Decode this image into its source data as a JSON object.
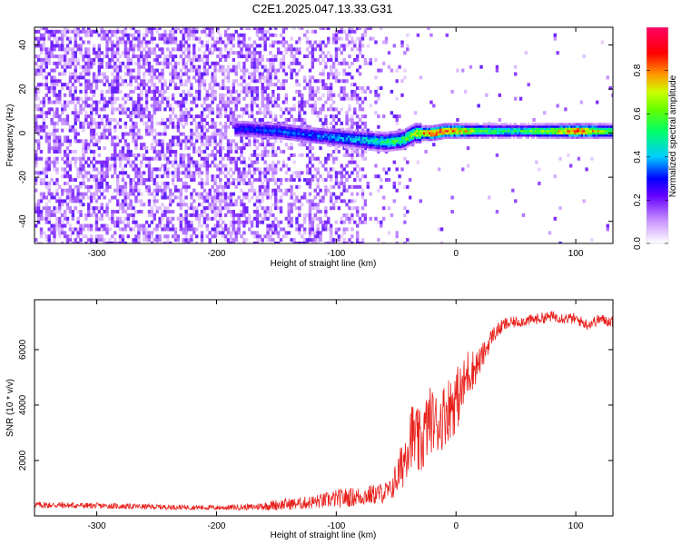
{
  "page": {
    "title": "C2E1.2025.047.13.33.G31"
  },
  "chart_data": [
    {
      "type": "heatmap",
      "title": "C2E1.2025.047.13.33.G31",
      "xlabel": "Height of straight line (km)",
      "ylabel": "Frequency (Hz)",
      "xlim": [
        -352,
        131
      ],
      "ylim": [
        -50,
        48
      ],
      "xticks": [
        -300,
        -200,
        -100,
        0,
        100
      ],
      "yticks": [
        -40,
        -20,
        0,
        20,
        40
      ],
      "x_tick_labels": [
        "-300",
        "-200",
        "-100",
        "0",
        "100"
      ],
      "y_tick_labels": [
        "-40",
        "-20",
        "0",
        "20",
        "40"
      ],
      "colorbar": {
        "label": "Normalized spectral amplitude",
        "range": [
          0,
          1
        ],
        "ticks": [
          0.0,
          0.2,
          0.4,
          0.6,
          0.8
        ],
        "tick_labels": [
          "0.0",
          "0.2",
          "0.4",
          "0.6",
          "0.8"
        ],
        "colormap": [
          "#ffffff",
          "#cc99ff",
          "#6600ff",
          "#0000ff",
          "#00ccff",
          "#00ff66",
          "#ccff00",
          "#ff9900",
          "#ff0000",
          "#ff0066"
        ]
      },
      "ridge": {
        "x": [
          -180,
          -150,
          -120,
          -100,
          -80,
          -60,
          -45,
          -35,
          -20,
          -10,
          0,
          20,
          50,
          80,
          100,
          131
        ],
        "freq": [
          2,
          1,
          -1,
          -2,
          -3,
          -4,
          -3,
          0,
          0,
          1,
          1,
          1,
          1,
          1,
          1,
          1
        ],
        "amplitude": [
          0.3,
          0.35,
          0.35,
          0.4,
          0.45,
          0.55,
          0.6,
          0.7,
          0.95,
          0.95,
          0.85,
          0.6,
          0.55,
          0.7,
          0.95,
          0.6
        ]
      },
      "grid": false
    },
    {
      "type": "line",
      "xlabel": "Height of straight line (km)",
      "ylabel": "SNR (10 * v/v)",
      "xlim": [
        -352,
        131
      ],
      "ylim": [
        0,
        7800
      ],
      "xticks": [
        -300,
        -200,
        -100,
        0,
        100
      ],
      "yticks": [
        2000,
        4000,
        6000
      ],
      "x_tick_labels": [
        "-300",
        "-200",
        "-100",
        "0",
        "100"
      ],
      "y_tick_labels": [
        "2000",
        "4000",
        "6000"
      ],
      "series": [
        {
          "color": "#e8211c",
          "x": [
            -352,
            -320,
            -280,
            -240,
            -200,
            -170,
            -150,
            -130,
            -110,
            -95,
            -80,
            -65,
            -55,
            -45,
            -38,
            -30,
            -22,
            -15,
            -8,
            0,
            5,
            10,
            15,
            20,
            25,
            30,
            40,
            50,
            60,
            80,
            100,
            110,
            120,
            131
          ],
          "y": [
            400,
            380,
            350,
            320,
            300,
            320,
            400,
            450,
            550,
            650,
            700,
            800,
            900,
            1800,
            3000,
            2500,
            3500,
            3300,
            3800,
            4200,
            4500,
            5200,
            5300,
            5600,
            6000,
            6500,
            6900,
            7000,
            7050,
            7200,
            7100,
            6900,
            7100,
            7000
          ],
          "noise": [
            120,
            110,
            100,
            90,
            90,
            110,
            200,
            220,
            280,
            350,
            350,
            380,
            400,
            900,
            1200,
            1300,
            1200,
            1100,
            1200,
            1200,
            1000,
            900,
            700,
            500,
            400,
            300,
            250,
            200,
            200,
            200,
            200,
            200,
            200,
            200
          ]
        }
      ],
      "grid": false
    }
  ]
}
